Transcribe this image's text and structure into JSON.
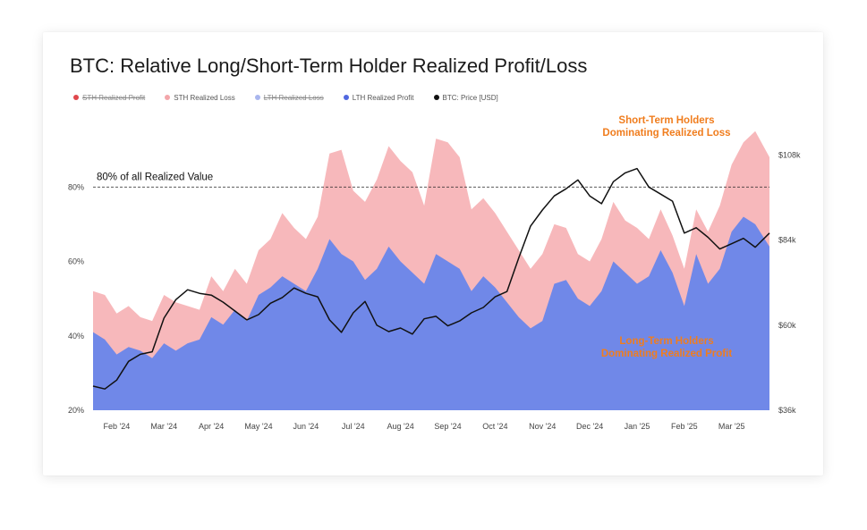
{
  "title": "BTC: Relative Long/Short-Term Holder Realized Profit/Loss",
  "legend": [
    {
      "label": "STH Realized Profit",
      "color": "#e0474c",
      "struck": true
    },
    {
      "label": "STH Realized Loss",
      "color": "#f3a6aa",
      "struck": false
    },
    {
      "label": "LTH Realized Loss",
      "color": "#a9b6ee",
      "struck": true
    },
    {
      "label": "LTH Realized Profit",
      "color": "#5168e0",
      "struck": false
    },
    {
      "label": "BTC: Price [USD]",
      "color": "#111111",
      "struck": false
    }
  ],
  "annotations": {
    "threshold_label": "80% of all Realized Value",
    "sth_label_line1": "Short-Term Holders",
    "sth_label_line2": "Dominating Realized Loss",
    "lth_label_line1": "Long-Term Holders",
    "lth_label_line2": "Dominating Realized Profit"
  },
  "colors": {
    "sth_loss": "#f7b8bb",
    "lth_profit": "#7088e8",
    "price": "#111111",
    "annotation": "#f07d1e"
  },
  "chart_data": {
    "type": "area",
    "x_ticks": [
      "Feb '24",
      "Mar '24",
      "Apr '24",
      "May '24",
      "Jun '24",
      "Jul '24",
      "Aug '24",
      "Sep '24",
      "Oct '24",
      "Nov '24",
      "Dec '24",
      "Jan '25",
      "Feb '25",
      "Mar '25"
    ],
    "y_left_ticks": [
      "20%",
      "40%",
      "60%",
      "80%"
    ],
    "y_left_range": [
      20,
      100
    ],
    "y_right_ticks": [
      "$36k",
      "$60k",
      "$84k",
      "$108k"
    ],
    "y_right_range": [
      36000,
      120000
    ],
    "threshold": 80,
    "x_range": [
      0,
      14.3
    ],
    "x": [
      0,
      0.25,
      0.5,
      0.75,
      1,
      1.25,
      1.5,
      1.75,
      2,
      2.25,
      2.5,
      2.75,
      3,
      3.25,
      3.5,
      3.75,
      4,
      4.25,
      4.5,
      4.75,
      5,
      5.25,
      5.5,
      5.75,
      6,
      6.25,
      6.5,
      6.75,
      7,
      7.25,
      7.5,
      7.75,
      8,
      8.25,
      8.5,
      8.75,
      9,
      9.25,
      9.5,
      9.75,
      10,
      10.25,
      10.5,
      10.75,
      11,
      11.25,
      11.5,
      11.75,
      12,
      12.25,
      12.5,
      12.75,
      13,
      13.25,
      13.5,
      13.75,
      14,
      14.3
    ],
    "series": [
      {
        "name": "STH Realized Loss",
        "values": [
          52,
          51,
          46,
          48,
          45,
          44,
          51,
          49,
          48,
          47,
          56,
          52,
          58,
          54,
          63,
          66,
          73,
          69,
          66,
          72,
          89,
          90,
          79,
          76,
          82,
          91,
          87,
          84,
          75,
          93,
          92,
          88,
          74,
          77,
          73,
          68,
          63,
          58,
          62,
          70,
          69,
          62,
          60,
          66,
          76,
          71,
          69,
          66,
          74,
          67,
          58,
          74,
          68,
          75,
          86,
          92,
          95,
          88
        ]
      },
      {
        "name": "LTH Realized Profit",
        "values": [
          41,
          39,
          35,
          37,
          36,
          34,
          38,
          36,
          38,
          39,
          45,
          43,
          47,
          44,
          51,
          53,
          56,
          54,
          52,
          58,
          66,
          62,
          60,
          55,
          58,
          64,
          60,
          57,
          54,
          62,
          60,
          58,
          52,
          56,
          53,
          49,
          45,
          42,
          44,
          54,
          55,
          50,
          48,
          52,
          60,
          57,
          54,
          56,
          63,
          57,
          48,
          62,
          54,
          58,
          68,
          72,
          70,
          64
        ]
      },
      {
        "name": "BTC: Price [USD]",
        "values": [
          42800,
          42000,
          44500,
          49800,
          51800,
          52500,
          62000,
          67200,
          70000,
          69000,
          68500,
          66500,
          64000,
          61500,
          63000,
          66200,
          67800,
          70500,
          69000,
          68000,
          61500,
          58000,
          63500,
          66700,
          60000,
          58200,
          59200,
          57500,
          61800,
          62500,
          59800,
          61200,
          63500,
          65000,
          68000,
          69500,
          79000,
          88000,
          92500,
          96500,
          98500,
          101000,
          96500,
          94300,
          100500,
          103000,
          104200,
          99000,
          97000,
          95000,
          86000,
          87500,
          84800,
          81500,
          83000,
          84500,
          82000,
          86000
        ]
      }
    ]
  }
}
